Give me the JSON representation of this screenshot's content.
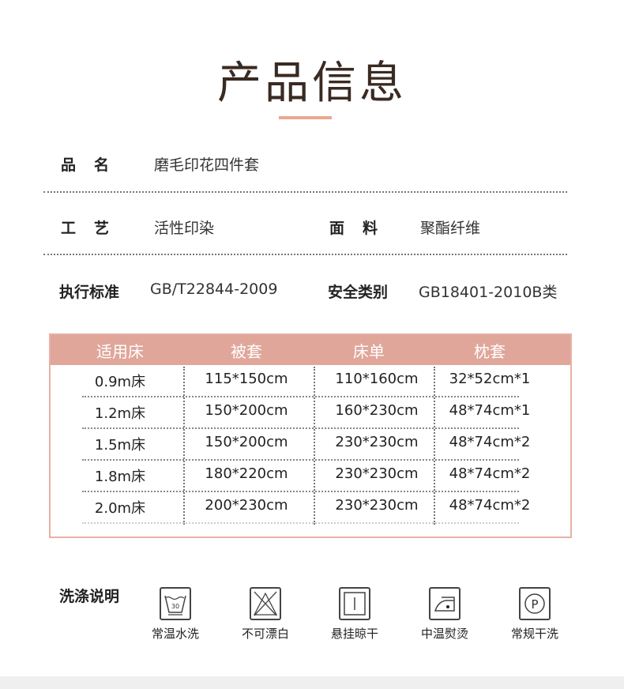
{
  "title": "产品信息",
  "info": {
    "name_label": "品　名",
    "name_value": "磨毛印花四件套",
    "craft_label": "工　艺",
    "craft_value": "活性印染",
    "fabric_label": "面　料",
    "fabric_value": "聚酯纤维",
    "standard_label": "执行标准",
    "standard_value": "GB/T22844-2009",
    "safety_label": "安全类别",
    "safety_value": "GB18401-2010B类"
  },
  "table": {
    "headers": [
      "适用床",
      "被套",
      "床单",
      "枕套"
    ],
    "rows": [
      [
        "0.9m床",
        "115*150cm",
        "110*160cm",
        "32*52cm*1"
      ],
      [
        "1.2m床",
        "150*200cm",
        "160*230cm",
        "48*74cm*1"
      ],
      [
        "1.5m床",
        "150*200cm",
        "230*230cm",
        "48*74cm*2"
      ],
      [
        "1.8m床",
        "180*220cm",
        "230*230cm",
        "48*74cm*2"
      ],
      [
        "2.0m床",
        "200*230cm",
        "230*230cm",
        "48*74cm*2"
      ]
    ],
    "header_color": "#e0a69a"
  },
  "care": {
    "title": "洗涤说明",
    "items": [
      {
        "icon": "wash-30-icon",
        "label": "常温水洗",
        "temp": "30"
      },
      {
        "icon": "no-bleach-icon",
        "label": "不可漂白"
      },
      {
        "icon": "hang-dry-icon",
        "label": "悬挂晾干"
      },
      {
        "icon": "iron-medium-icon",
        "label": "中温熨烫"
      },
      {
        "icon": "dry-clean-p-icon",
        "label": "常规干洗",
        "letter": "P"
      }
    ]
  },
  "accent_color": "#e9a990"
}
